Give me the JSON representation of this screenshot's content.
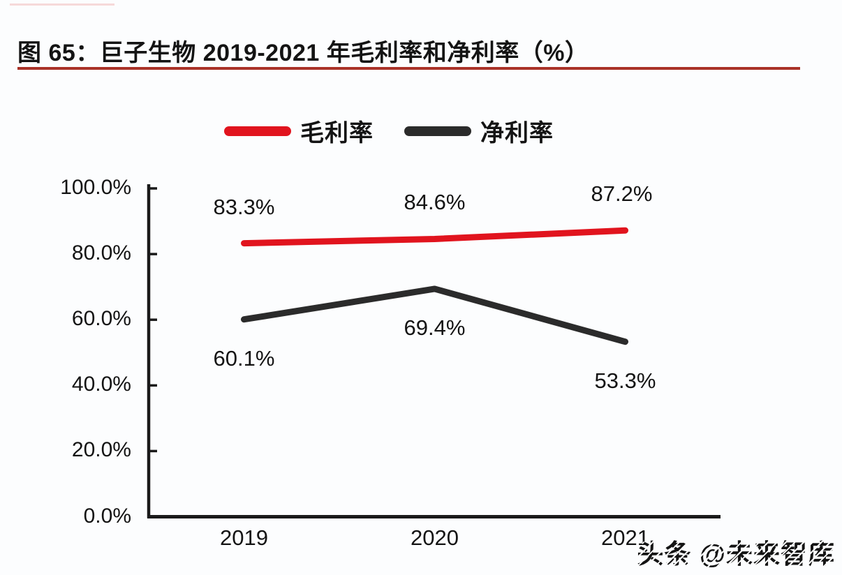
{
  "page": {
    "title": "图 65：巨子生物 2019-2021 年毛利率和净利率（%）",
    "watermark": "头条 @未来智库"
  },
  "colors": {
    "title_rule": "#a93228",
    "axis": "#1a1a1a",
    "gross_margin_line": "#e1141e",
    "net_margin_line": "#2b2b2b"
  },
  "chart_data": {
    "type": "line",
    "title": "巨子生物 2019-2021 年毛利率和净利率（%）",
    "categories": [
      "2019",
      "2020",
      "2021"
    ],
    "series": [
      {
        "name": "毛利率",
        "color": "#e1141e",
        "values": [
          83.3,
          84.6,
          87.2
        ],
        "labels": [
          "83.3%",
          "84.6%",
          "87.2%"
        ]
      },
      {
        "name": "净利率",
        "color": "#2b2b2b",
        "values": [
          60.1,
          69.4,
          53.3
        ],
        "labels": [
          "60.1%",
          "69.4%",
          "53.3%"
        ]
      }
    ],
    "ylim": [
      0,
      100
    ],
    "ytick_step": 20,
    "ytick_labels": [
      "0.0%",
      "20.0%",
      "40.0%",
      "60.0%",
      "80.0%",
      "100.0%"
    ],
    "grid": false,
    "legend_position": "top",
    "data_labels": true
  }
}
